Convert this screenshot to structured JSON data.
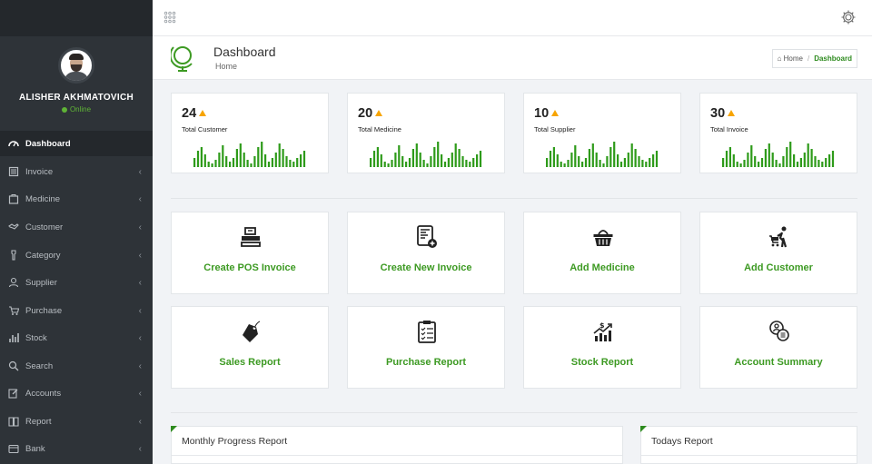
{
  "user": {
    "name": "ALISHER AKHMATOVICH",
    "status": "Online"
  },
  "sidebar": {
    "items": [
      {
        "label": "Dashboard",
        "icon": "dashboard-icon",
        "active": true
      },
      {
        "label": "Invoice",
        "icon": "invoice-icon"
      },
      {
        "label": "Medicine",
        "icon": "medicine-icon"
      },
      {
        "label": "Customer",
        "icon": "handshake-icon"
      },
      {
        "label": "Category",
        "icon": "category-icon"
      },
      {
        "label": "Supplier",
        "icon": "user-icon"
      },
      {
        "label": "Purchase",
        "icon": "cart-icon"
      },
      {
        "label": "Stock",
        "icon": "bar-chart-icon"
      },
      {
        "label": "Search",
        "icon": "search-icon"
      },
      {
        "label": "Accounts",
        "icon": "edit-icon"
      },
      {
        "label": "Report",
        "icon": "book-icon"
      },
      {
        "label": "Bank",
        "icon": "bank-icon"
      }
    ],
    "chevron": "‹"
  },
  "header": {
    "title": "Dashboard",
    "subtitle": "Home"
  },
  "breadcrumb": {
    "home": "Home",
    "separator": "/",
    "current": "Dashboard"
  },
  "stats": [
    {
      "value": "24",
      "label": "Total Customer"
    },
    {
      "value": "20",
      "label": "Total Medicine"
    },
    {
      "value": "10",
      "label": "Total Supplier"
    },
    {
      "value": "30",
      "label": "Total Invoice"
    }
  ],
  "actions": [
    {
      "label": "Create POS Invoice",
      "icon": "pos-register-icon"
    },
    {
      "label": "Create New Invoice",
      "icon": "new-invoice-icon"
    },
    {
      "label": "Add Medicine",
      "icon": "basket-icon"
    },
    {
      "label": "Add Customer",
      "icon": "customer-cart-icon"
    },
    {
      "label": "Sales Report",
      "icon": "sale-tag-icon"
    },
    {
      "label": "Purchase Report",
      "icon": "clipboard-icon"
    },
    {
      "label": "Stock Report",
      "icon": "stock-growth-icon"
    },
    {
      "label": "Account Summary",
      "icon": "account-summary-icon"
    }
  ],
  "panels": {
    "monthly": "Monthly Progress Report",
    "today": "Todays Report"
  },
  "colors": {
    "accent": "#3d9a23",
    "sidebar": "#2e3338",
    "warning": "#f7a400"
  }
}
